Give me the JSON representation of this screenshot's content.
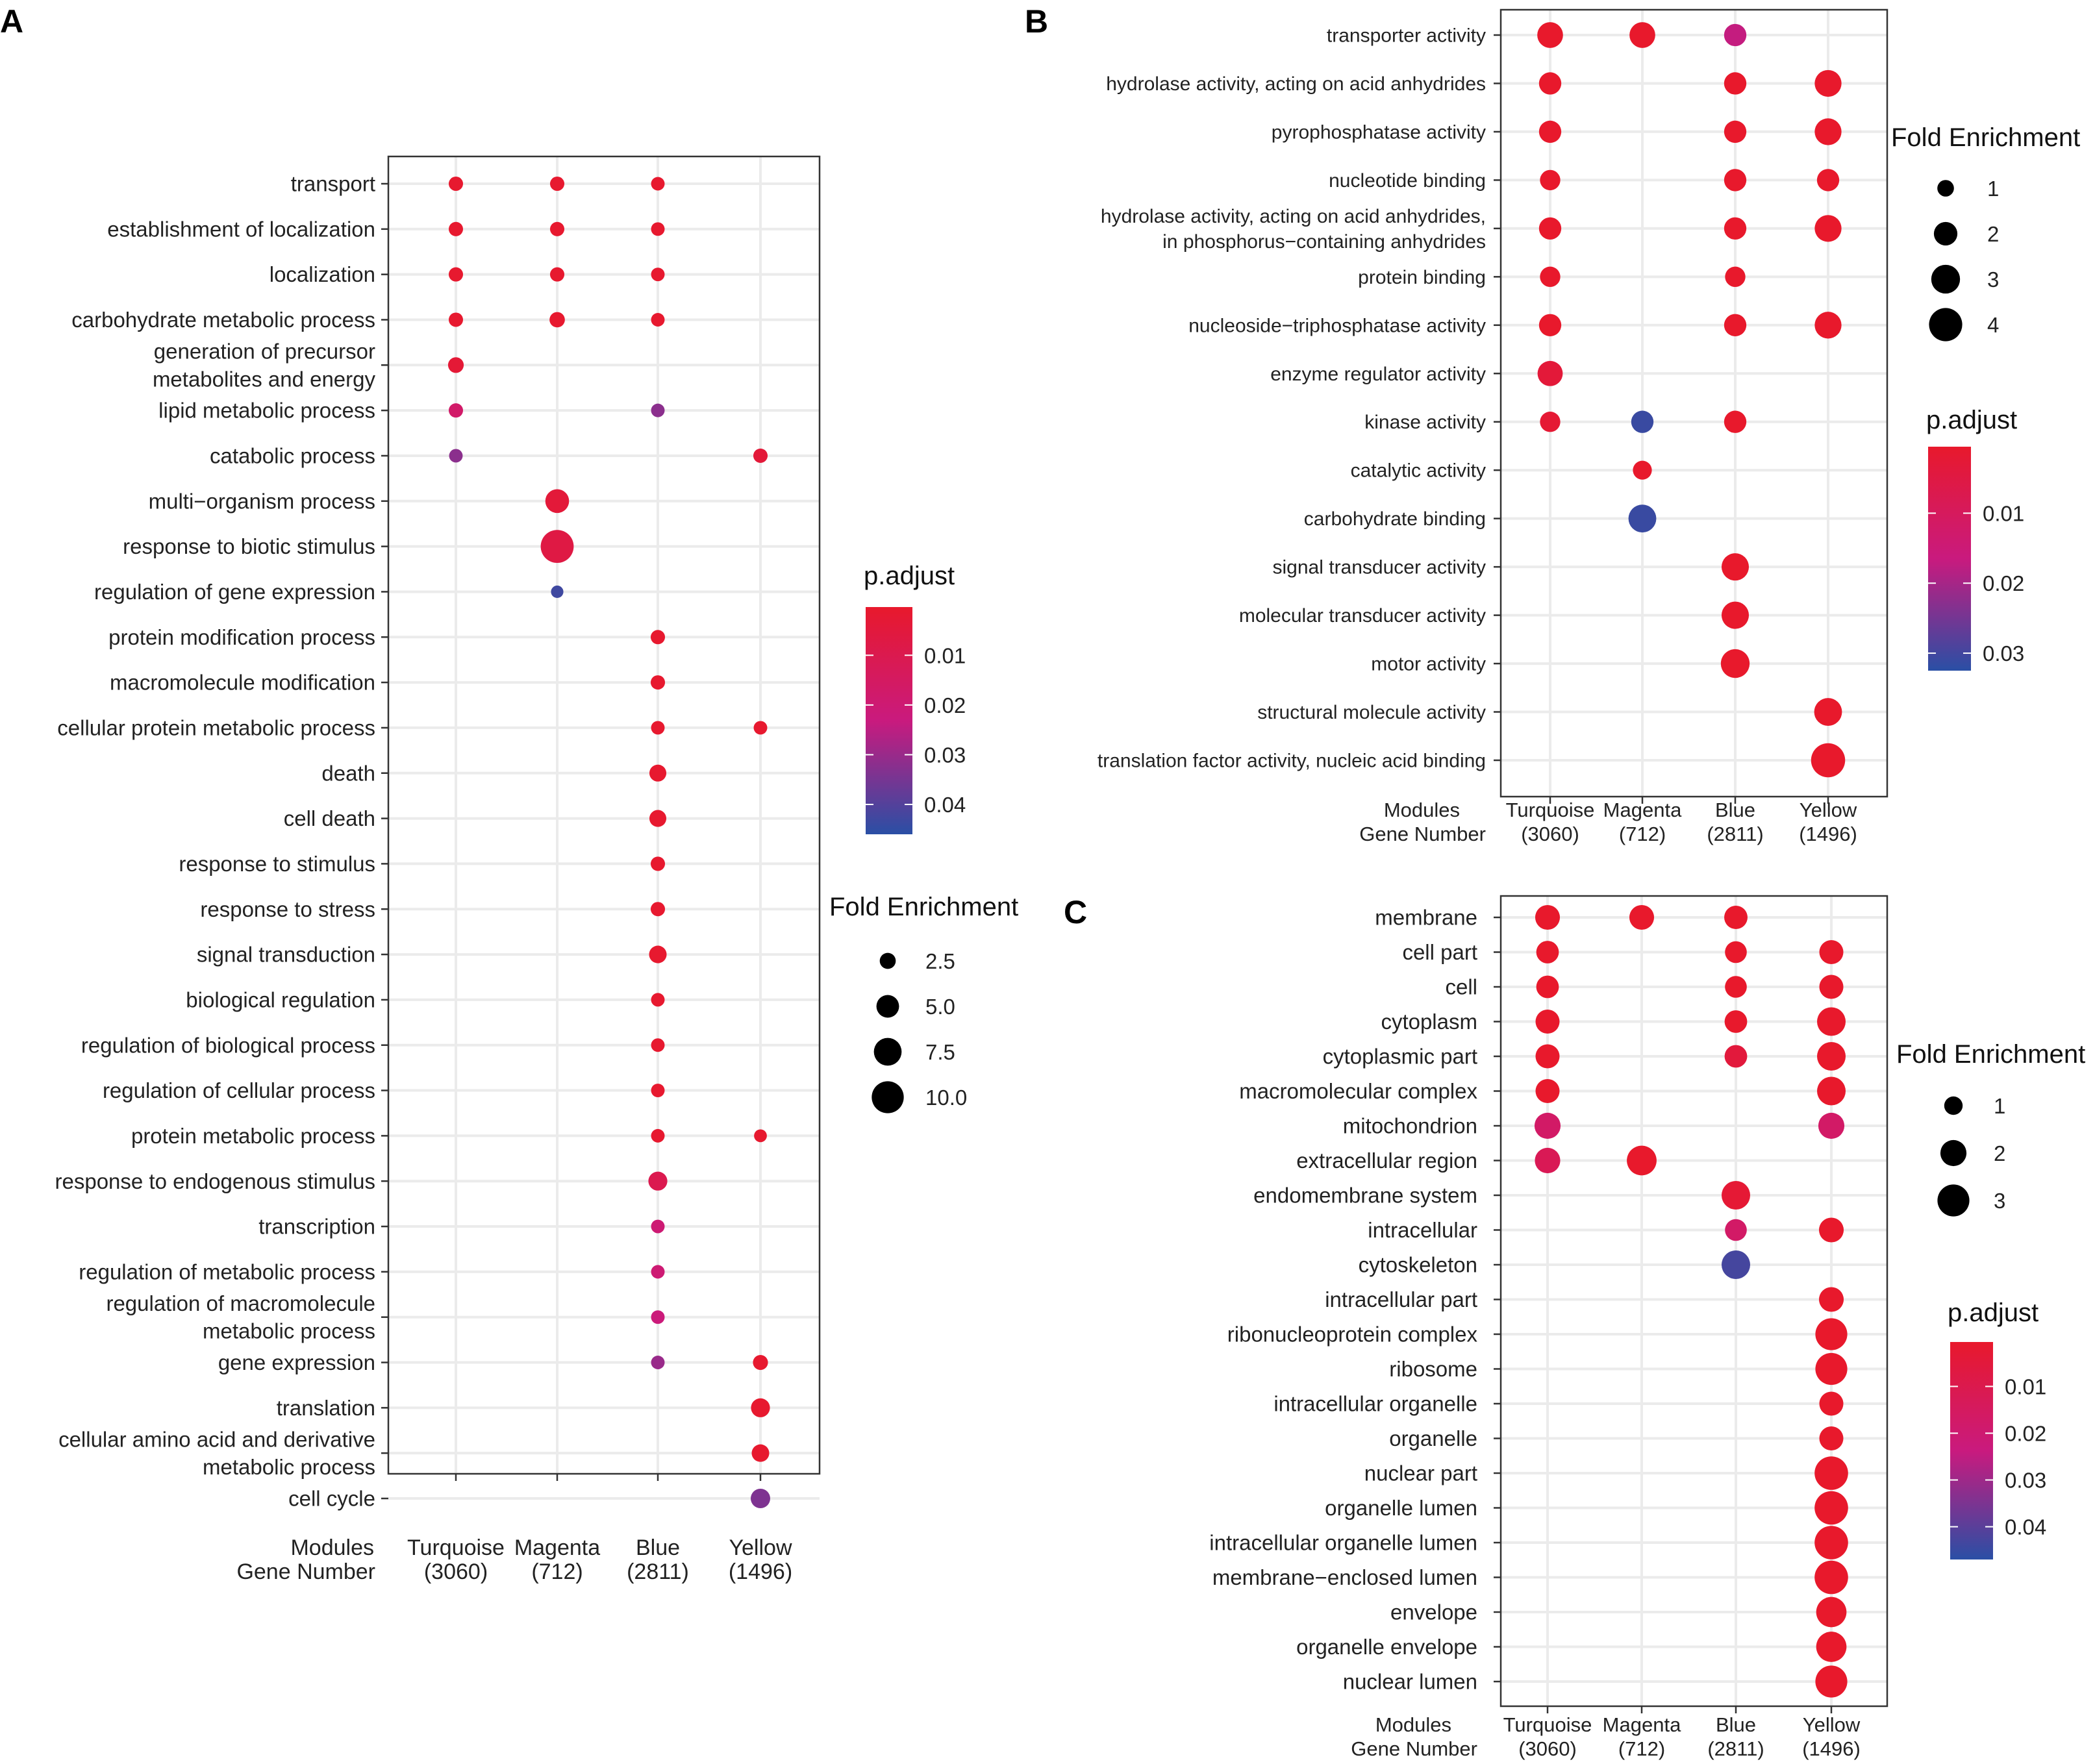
{
  "chart_data": [
    {
      "panel": "A",
      "type": "scatter",
      "x_title": [
        "Modules",
        "Gene Number"
      ],
      "categories": [
        {
          "name": "Turquoise",
          "count": "(3060)"
        },
        {
          "name": "Magenta",
          "count": "(712)"
        },
        {
          "name": "Blue",
          "count": "(2811)"
        },
        {
          "name": "Yellow",
          "count": "(1496)"
        }
      ],
      "terms": [
        "transport",
        "establishment of localization",
        "localization",
        "carbohydrate metabolic process",
        "generation of precursor\nmetabolites and energy",
        "lipid metabolic process",
        "catabolic process",
        "multi−organism process",
        "response to biotic stimulus",
        "regulation of gene expression",
        "protein modification process",
        "macromolecule modification",
        "cellular protein metabolic process",
        "death",
        "cell death",
        "response to stimulus",
        "response to stress",
        "signal transduction",
        "biological regulation",
        "regulation of biological process",
        "regulation of cellular process",
        "protein metabolic process",
        "response to endogenous stimulus",
        "transcription",
        "regulation of metabolic process",
        "regulation of macromolecule\nmetabolic process",
        "gene expression",
        "translation",
        "cellular amino acid and derivative\nmetabolic process",
        "cell cycle"
      ],
      "points": [
        {
          "term": 0,
          "module": 0,
          "fold": 2.0,
          "padj": 0.001
        },
        {
          "term": 0,
          "module": 1,
          "fold": 2.0,
          "padj": 0.001
        },
        {
          "term": 0,
          "module": 2,
          "fold": 1.8,
          "padj": 0.001
        },
        {
          "term": 1,
          "module": 0,
          "fold": 2.0,
          "padj": 0.001
        },
        {
          "term": 1,
          "module": 1,
          "fold": 2.0,
          "padj": 0.001
        },
        {
          "term": 1,
          "module": 2,
          "fold": 1.8,
          "padj": 0.001
        },
        {
          "term": 2,
          "module": 0,
          "fold": 2.0,
          "padj": 0.001
        },
        {
          "term": 2,
          "module": 1,
          "fold": 2.0,
          "padj": 0.001
        },
        {
          "term": 2,
          "module": 2,
          "fold": 1.8,
          "padj": 0.001
        },
        {
          "term": 3,
          "module": 0,
          "fold": 2.0,
          "padj": 0.001
        },
        {
          "term": 3,
          "module": 1,
          "fold": 2.3,
          "padj": 0.001
        },
        {
          "term": 3,
          "module": 2,
          "fold": 1.8,
          "padj": 0.001
        },
        {
          "term": 4,
          "module": 0,
          "fold": 2.4,
          "padj": 0.003
        },
        {
          "term": 5,
          "module": 0,
          "fold": 2.0,
          "padj": 0.017
        },
        {
          "term": 5,
          "module": 2,
          "fold": 1.8,
          "padj": 0.032
        },
        {
          "term": 6,
          "module": 0,
          "fold": 1.8,
          "padj": 0.032
        },
        {
          "term": 6,
          "module": 3,
          "fold": 2.0,
          "padj": 0.004
        },
        {
          "term": 7,
          "module": 1,
          "fold": 5.5,
          "padj": 0.004
        },
        {
          "term": 8,
          "module": 1,
          "fold": 10.6,
          "padj": 0.007
        },
        {
          "term": 9,
          "module": 1,
          "fold": 1.5,
          "padj": 0.043
        },
        {
          "term": 10,
          "module": 2,
          "fold": 2.0,
          "padj": 0.001
        },
        {
          "term": 11,
          "module": 2,
          "fold": 2.0,
          "padj": 0.001
        },
        {
          "term": 12,
          "module": 2,
          "fold": 1.8,
          "padj": 0.001
        },
        {
          "term": 12,
          "module": 3,
          "fold": 1.8,
          "padj": 0.001
        },
        {
          "term": 13,
          "module": 2,
          "fold": 2.8,
          "padj": 0.001
        },
        {
          "term": 14,
          "module": 2,
          "fold": 2.8,
          "padj": 0.001
        },
        {
          "term": 15,
          "module": 2,
          "fold": 2.0,
          "padj": 0.001
        },
        {
          "term": 16,
          "module": 2,
          "fold": 2.0,
          "padj": 0.001
        },
        {
          "term": 17,
          "module": 2,
          "fold": 3.0,
          "padj": 0.001
        },
        {
          "term": 18,
          "module": 2,
          "fold": 1.8,
          "padj": 0.001
        },
        {
          "term": 19,
          "module": 2,
          "fold": 1.8,
          "padj": 0.001
        },
        {
          "term": 20,
          "module": 2,
          "fold": 1.8,
          "padj": 0.001
        },
        {
          "term": 21,
          "module": 2,
          "fold": 1.8,
          "padj": 0.001
        },
        {
          "term": 21,
          "module": 3,
          "fold": 1.6,
          "padj": 0.001
        },
        {
          "term": 22,
          "module": 2,
          "fold": 3.5,
          "padj": 0.01
        },
        {
          "term": 23,
          "module": 2,
          "fold": 1.8,
          "padj": 0.02
        },
        {
          "term": 24,
          "module": 2,
          "fold": 1.8,
          "padj": 0.02
        },
        {
          "term": 25,
          "module": 2,
          "fold": 1.8,
          "padj": 0.022
        },
        {
          "term": 26,
          "module": 2,
          "fold": 1.8,
          "padj": 0.03
        },
        {
          "term": 26,
          "module": 3,
          "fold": 2.2,
          "padj": 0.001
        },
        {
          "term": 27,
          "module": 3,
          "fold": 3.5,
          "padj": 0.001
        },
        {
          "term": 28,
          "module": 3,
          "fold": 3.0,
          "padj": 0.001
        },
        {
          "term": 29,
          "module": 3,
          "fold": 3.7,
          "padj": 0.034
        }
      ],
      "legend_padj": {
        "title": "p.adjust",
        "ticks": [
          "0.01",
          "0.02",
          "0.03",
          "0.04"
        ],
        "tick_values": [
          0.01,
          0.02,
          0.03,
          0.04
        ],
        "range": [
          0.0003,
          0.046
        ]
      },
      "legend_fold": {
        "title": "Fold Enrichment",
        "ticks": [
          "2.5",
          "5.0",
          "7.5",
          "10.0"
        ],
        "tick_values": [
          2.5,
          5.0,
          7.5,
          10.0
        ]
      }
    },
    {
      "panel": "B",
      "type": "scatter",
      "x_title": [
        "Modules",
        "Gene Number"
      ],
      "categories": [
        {
          "name": "Turquoise",
          "count": "(3060)"
        },
        {
          "name": "Magenta",
          "count": "(712)"
        },
        {
          "name": "Blue",
          "count": "(2811)"
        },
        {
          "name": "Yellow",
          "count": "(1496)"
        }
      ],
      "terms": [
        "transporter activity",
        "hydrolase activity, acting on acid anhydrides",
        "pyrophosphatase activity",
        "nucleotide binding",
        "hydrolase activity, acting on acid anhydrides,\nin phosphorus−containing anhydrides",
        "protein binding",
        "nucleoside−triphosphatase activity",
        "enzyme regulator activity",
        "kinase activity",
        "catalytic activity",
        "carbohydrate binding",
        "signal transducer activity",
        "molecular transducer activity",
        "motor activity",
        "structural molecule activity",
        "translation factor activity, nucleic acid binding"
      ],
      "points": [
        {
          "term": 0,
          "module": 0,
          "fold": 2.4,
          "padj": 0.0005
        },
        {
          "term": 0,
          "module": 1,
          "fold": 2.4,
          "padj": 0.0005
        },
        {
          "term": 0,
          "module": 2,
          "fold": 1.8,
          "padj": 0.017
        },
        {
          "term": 1,
          "module": 0,
          "fold": 1.8,
          "padj": 0.0005
        },
        {
          "term": 1,
          "module": 2,
          "fold": 1.8,
          "padj": 0.0005
        },
        {
          "term": 1,
          "module": 3,
          "fold": 2.6,
          "padj": 0.0005
        },
        {
          "term": 2,
          "module": 0,
          "fold": 1.8,
          "padj": 0.0005
        },
        {
          "term": 2,
          "module": 2,
          "fold": 1.8,
          "padj": 0.0005
        },
        {
          "term": 2,
          "module": 3,
          "fold": 2.6,
          "padj": 0.0005
        },
        {
          "term": 3,
          "module": 0,
          "fold": 1.5,
          "padj": 0.0005
        },
        {
          "term": 3,
          "module": 2,
          "fold": 1.8,
          "padj": 0.0005
        },
        {
          "term": 3,
          "module": 3,
          "fold": 1.8,
          "padj": 0.0005
        },
        {
          "term": 4,
          "module": 0,
          "fold": 1.8,
          "padj": 0.0005
        },
        {
          "term": 4,
          "module": 2,
          "fold": 1.8,
          "padj": 0.0005
        },
        {
          "term": 4,
          "module": 3,
          "fold": 2.6,
          "padj": 0.0005
        },
        {
          "term": 5,
          "module": 0,
          "fold": 1.5,
          "padj": 0.0005
        },
        {
          "term": 5,
          "module": 2,
          "fold": 1.5,
          "padj": 0.0005
        },
        {
          "term": 6,
          "module": 0,
          "fold": 1.8,
          "padj": 0.0005
        },
        {
          "term": 6,
          "module": 2,
          "fold": 1.8,
          "padj": 0.0005
        },
        {
          "term": 6,
          "module": 3,
          "fold": 2.6,
          "padj": 0.0005
        },
        {
          "term": 7,
          "module": 0,
          "fold": 2.3,
          "padj": 0.003
        },
        {
          "term": 8,
          "module": 0,
          "fold": 1.5,
          "padj": 0.002
        },
        {
          "term": 8,
          "module": 1,
          "fold": 1.8,
          "padj": 0.031
        },
        {
          "term": 8,
          "module": 2,
          "fold": 1.8,
          "padj": 0.0005
        },
        {
          "term": 9,
          "module": 1,
          "fold": 1.3,
          "padj": 0.0005
        },
        {
          "term": 10,
          "module": 1,
          "fold": 2.8,
          "padj": 0.031
        },
        {
          "term": 11,
          "module": 2,
          "fold": 2.7,
          "padj": 0.0005
        },
        {
          "term": 12,
          "module": 2,
          "fold": 2.7,
          "padj": 0.0005
        },
        {
          "term": 13,
          "module": 2,
          "fold": 3.0,
          "padj": 0.0005
        },
        {
          "term": 14,
          "module": 3,
          "fold": 2.8,
          "padj": 0.0005
        },
        {
          "term": 15,
          "module": 3,
          "fold": 4.2,
          "padj": 0.0005
        }
      ],
      "legend_padj": {
        "title": "p.adjust",
        "ticks": [
          "0.01",
          "0.02",
          "0.03"
        ],
        "tick_values": [
          0.01,
          0.02,
          0.03
        ],
        "range": [
          0.0005,
          0.0325
        ]
      },
      "legend_fold": {
        "title": "Fold Enrichment",
        "ticks": [
          "1",
          "2",
          "3",
          "4"
        ],
        "tick_values": [
          1,
          2,
          3,
          4
        ]
      }
    },
    {
      "panel": "C",
      "type": "scatter",
      "x_title": [
        "Modules",
        "Gene Number"
      ],
      "categories": [
        {
          "name": "Turquoise",
          "count": "(3060)"
        },
        {
          "name": "Magenta",
          "count": "(712)"
        },
        {
          "name": "Blue",
          "count": "(2811)"
        },
        {
          "name": "Yellow",
          "count": "(1496)"
        }
      ],
      "terms": [
        "membrane",
        "cell part",
        "cell",
        "cytoplasm",
        "cytoplasmic part",
        "macromolecular complex",
        "mitochondrion",
        "extracellular region",
        "endomembrane system",
        "intracellular",
        "cytoskeleton",
        "intracellular part",
        "ribonucleoprotein complex",
        "ribosome",
        "intracellular organelle",
        "organelle",
        "nuclear part",
        "organelle lumen",
        "intracellular organelle lumen",
        "membrane−enclosed lumen",
        "envelope",
        "organelle envelope",
        "nuclear lumen"
      ],
      "points": [
        {
          "term": 0,
          "module": 0,
          "fold": 1.8,
          "padj": 0.0005
        },
        {
          "term": 0,
          "module": 1,
          "fold": 1.8,
          "padj": 0.0005
        },
        {
          "term": 0,
          "module": 2,
          "fold": 1.6,
          "padj": 0.0005
        },
        {
          "term": 1,
          "module": 0,
          "fold": 1.5,
          "padj": 0.0005
        },
        {
          "term": 1,
          "module": 2,
          "fold": 1.4,
          "padj": 0.0005
        },
        {
          "term": 1,
          "module": 3,
          "fold": 1.7,
          "padj": 0.0005
        },
        {
          "term": 2,
          "module": 0,
          "fold": 1.5,
          "padj": 0.0005
        },
        {
          "term": 2,
          "module": 2,
          "fold": 1.4,
          "padj": 0.0005
        },
        {
          "term": 2,
          "module": 3,
          "fold": 1.7,
          "padj": 0.0005
        },
        {
          "term": 3,
          "module": 0,
          "fold": 1.7,
          "padj": 0.0005
        },
        {
          "term": 3,
          "module": 2,
          "fold": 1.5,
          "padj": 0.0005
        },
        {
          "term": 3,
          "module": 3,
          "fold": 2.4,
          "padj": 0.0005
        },
        {
          "term": 4,
          "module": 0,
          "fold": 1.7,
          "padj": 0.0005
        },
        {
          "term": 4,
          "module": 2,
          "fold": 1.5,
          "padj": 0.005
        },
        {
          "term": 4,
          "module": 3,
          "fold": 2.4,
          "padj": 0.0005
        },
        {
          "term": 5,
          "module": 0,
          "fold": 1.7,
          "padj": 0.0005
        },
        {
          "term": 5,
          "module": 3,
          "fold": 2.4,
          "padj": 0.0005
        },
        {
          "term": 6,
          "module": 0,
          "fold": 2.0,
          "padj": 0.017
        },
        {
          "term": 6,
          "module": 3,
          "fold": 2.0,
          "padj": 0.017
        },
        {
          "term": 7,
          "module": 0,
          "fold": 1.9,
          "padj": 0.012
        },
        {
          "term": 7,
          "module": 1,
          "fold": 2.6,
          "padj": 0.0005
        },
        {
          "term": 8,
          "module": 2,
          "fold": 2.4,
          "padj": 0.003
        },
        {
          "term": 9,
          "module": 2,
          "fold": 1.4,
          "padj": 0.017
        },
        {
          "term": 9,
          "module": 3,
          "fold": 1.8,
          "padj": 0.0005
        },
        {
          "term": 10,
          "module": 2,
          "fold": 2.4,
          "padj": 0.043
        },
        {
          "term": 11,
          "module": 3,
          "fold": 1.8,
          "padj": 0.0005
        },
        {
          "term": 12,
          "module": 3,
          "fold": 3.0,
          "padj": 0.0005
        },
        {
          "term": 13,
          "module": 3,
          "fold": 3.0,
          "padj": 0.0005
        },
        {
          "term": 14,
          "module": 3,
          "fold": 1.7,
          "padj": 0.0005
        },
        {
          "term": 15,
          "module": 3,
          "fold": 1.7,
          "padj": 0.0005
        },
        {
          "term": 16,
          "module": 3,
          "fold": 3.3,
          "padj": 0.0005
        },
        {
          "term": 17,
          "module": 3,
          "fold": 3.3,
          "padj": 0.0005
        },
        {
          "term": 18,
          "module": 3,
          "fold": 3.3,
          "padj": 0.0005
        },
        {
          "term": 19,
          "module": 3,
          "fold": 3.3,
          "padj": 0.0005
        },
        {
          "term": 20,
          "module": 3,
          "fold": 2.7,
          "padj": 0.0005
        },
        {
          "term": 21,
          "module": 3,
          "fold": 2.7,
          "padj": 0.0005
        },
        {
          "term": 22,
          "module": 3,
          "fold": 3.0,
          "padj": 0.0005
        }
      ],
      "legend_padj": {
        "title": "p.adjust",
        "ticks": [
          "0.01",
          "0.02",
          "0.03",
          "0.04"
        ],
        "tick_values": [
          0.01,
          0.02,
          0.03,
          0.04
        ],
        "range": [
          0.0005,
          0.047
        ]
      },
      "legend_fold": {
        "title": "Fold Enrichment",
        "ticks": [
          "1",
          "2",
          "3"
        ],
        "tick_values": [
          1,
          2,
          3
        ]
      }
    }
  ],
  "colors": {
    "padj_low": "#e8192c",
    "padj_mid": "#c91a7e",
    "padj_high": "#2a4fa5",
    "gridline": "#ebebeb",
    "frame": "#333333"
  }
}
